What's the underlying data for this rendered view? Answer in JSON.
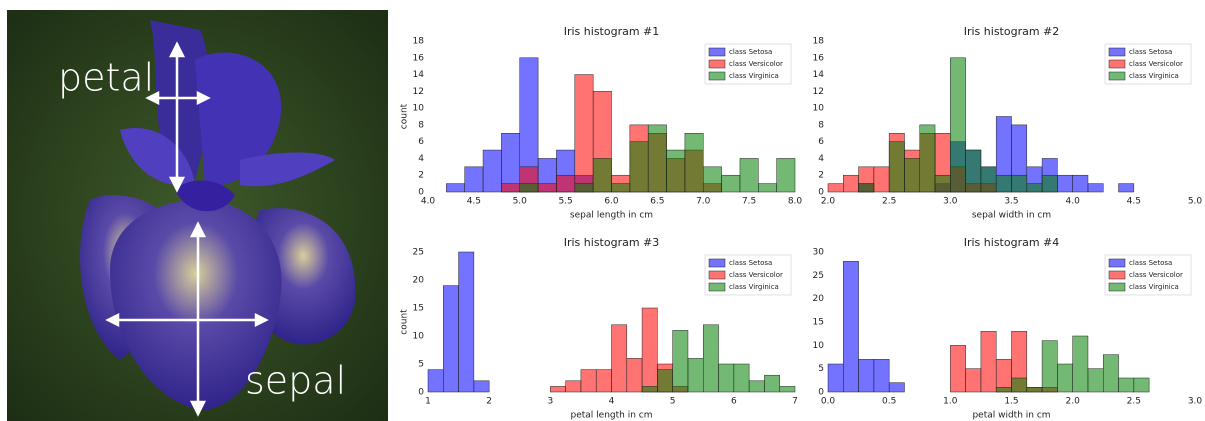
{
  "image": {
    "labels": [
      "petal",
      "sepal"
    ]
  },
  "chart_data": [
    {
      "type": "histogram",
      "title": "Iris histogram #1",
      "x_label": "sepal length in cm",
      "y_label": "count",
      "xlim": [
        4.0,
        8.0
      ],
      "ylim": [
        0,
        18
      ],
      "xticks": [
        {
          "value": 4,
          "label": "4.0"
        },
        4.5,
        {
          "value": 5,
          "label": "5.0"
        },
        5.5,
        {
          "value": 6,
          "label": "6.0"
        },
        6.5,
        {
          "value": 7,
          "label": "7.0"
        },
        7.5,
        {
          "value": 8,
          "label": "8.0"
        }
      ],
      "yticks": [
        0,
        2,
        4,
        6,
        8,
        10,
        12,
        14,
        16,
        18
      ],
      "legend": "upper right",
      "series": [
        {
          "name": "class Setosa",
          "color": "#0000ff",
          "bins": [
            4.0,
            4.2,
            4.4,
            4.6,
            4.8,
            5.0,
            5.2,
            5.4,
            5.6,
            5.8,
            6.0,
            6.2,
            6.4,
            6.6,
            6.8,
            7.0,
            7.2,
            7.4,
            7.6,
            7.8,
            8.0
          ],
          "values": [
            0,
            1,
            3,
            5,
            7,
            16,
            4,
            5,
            2,
            0,
            0,
            0,
            0,
            0,
            0,
            0,
            0,
            0,
            0,
            0
          ]
        },
        {
          "name": "class Versicolor",
          "color": "#ff0000",
          "bins": [
            4.0,
            4.2,
            4.4,
            4.6,
            4.8,
            5.0,
            5.2,
            5.4,
            5.6,
            5.8,
            6.0,
            6.2,
            6.4,
            6.6,
            6.8,
            7.0,
            7.2,
            7.4,
            7.6,
            7.8,
            8.0
          ],
          "values": [
            0,
            0,
            0,
            0,
            1,
            3,
            1,
            2,
            14,
            12,
            2,
            8,
            7,
            4,
            5,
            1,
            0,
            0,
            0,
            0
          ]
        },
        {
          "name": "class Virginica",
          "color": "#008000",
          "bins": [
            4.0,
            4.2,
            4.4,
            4.6,
            4.8,
            5.0,
            5.2,
            5.4,
            5.6,
            5.8,
            6.0,
            6.2,
            6.4,
            6.6,
            6.8,
            7.0,
            7.2,
            7.4,
            7.6,
            7.8,
            8.0
          ],
          "values": [
            0,
            0,
            0,
            0,
            0,
            1,
            0,
            0,
            1,
            4,
            1,
            6,
            8,
            5,
            7,
            3,
            2,
            4,
            1,
            4
          ]
        }
      ]
    },
    {
      "type": "histogram",
      "title": "Iris histogram #2",
      "x_label": "sepal width in cm",
      "xlim": [
        2.0,
        5.0
      ],
      "ylim": [
        0,
        18
      ],
      "xticks": [
        {
          "value": 2,
          "label": "2.0"
        },
        2.5,
        {
          "value": 3,
          "label": "3.0"
        },
        3.5,
        {
          "value": 4,
          "label": "4.0"
        },
        4.5,
        {
          "value": 5,
          "label": "5.0"
        }
      ],
      "yticks": [
        0,
        2,
        4,
        6,
        8,
        10,
        12,
        14,
        16,
        18
      ],
      "legend": "upper right",
      "series": [
        {
          "name": "class Setosa",
          "color": "#0000ff",
          "bins": [
            2.0,
            2.125,
            2.25,
            2.375,
            2.5,
            2.625,
            2.75,
            2.875,
            3.0,
            3.125,
            3.25,
            3.375,
            3.5,
            3.625,
            3.75,
            3.875,
            4.0,
            4.125,
            4.25,
            4.375,
            4.5
          ],
          "values": [
            0,
            0,
            1,
            0,
            0,
            0,
            0,
            1,
            6,
            5,
            3,
            9,
            8,
            3,
            4,
            2,
            2,
            1,
            0,
            1
          ]
        },
        {
          "name": "class Versicolor",
          "color": "#ff0000",
          "bins": [
            2.0,
            2.125,
            2.25,
            2.375,
            2.5,
            2.625,
            2.75,
            2.875,
            3.0,
            3.125,
            3.25,
            3.375,
            3.5,
            3.625,
            3.75,
            3.875,
            4.0,
            4.125,
            4.25,
            4.375,
            4.5
          ],
          "values": [
            1,
            2,
            3,
            3,
            7,
            5,
            7,
            7,
            3,
            1,
            1,
            0,
            0,
            0,
            0,
            0,
            0,
            0,
            0,
            0
          ]
        },
        {
          "name": "class Virginica",
          "color": "#008000",
          "bins": [
            2.0,
            2.125,
            2.25,
            2.375,
            2.5,
            2.625,
            2.75,
            2.875,
            3.0,
            3.125,
            3.25,
            3.375,
            3.5,
            3.625,
            3.75,
            3.875,
            4.0,
            4.125,
            4.25,
            4.375,
            4.5
          ],
          "values": [
            0,
            0,
            1,
            0,
            6,
            4,
            8,
            2,
            16,
            5,
            3,
            2,
            2,
            1,
            2,
            0,
            0,
            0,
            0,
            0
          ]
        }
      ]
    },
    {
      "type": "histogram",
      "title": "Iris histogram #3",
      "x_label": "petal length in cm",
      "y_label": "count",
      "xlim": [
        1,
        7
      ],
      "ylim": [
        0,
        25
      ],
      "xticks": [
        1,
        2,
        3,
        4,
        5,
        6,
        7
      ],
      "yticks": [
        0,
        5,
        10,
        15,
        20,
        25
      ],
      "legend": "upper right",
      "series": [
        {
          "name": "class Setosa",
          "color": "#0000ff",
          "bins": [
            1.0,
            1.25,
            1.5,
            1.75,
            2.0,
            2.25,
            2.5,
            2.75,
            3.0,
            3.25,
            3.5,
            3.75,
            4.0,
            4.25,
            4.5,
            4.75,
            5.0,
            5.25,
            5.5,
            5.75,
            6.0,
            6.25,
            6.5,
            6.75,
            7.0
          ],
          "values": [
            4,
            19,
            25,
            2,
            0,
            0,
            0,
            0,
            0,
            0,
            0,
            0,
            0,
            0,
            0,
            0,
            0,
            0,
            0,
            0,
            0,
            0,
            0,
            0
          ]
        },
        {
          "name": "class Versicolor",
          "color": "#ff0000",
          "bins": [
            1.0,
            1.25,
            1.5,
            1.75,
            2.0,
            2.25,
            2.5,
            2.75,
            3.0,
            3.25,
            3.5,
            3.75,
            4.0,
            4.25,
            4.5,
            4.75,
            5.0,
            5.25,
            5.5,
            5.75,
            6.0,
            6.25,
            6.5,
            6.75,
            7.0
          ],
          "values": [
            0,
            0,
            0,
            0,
            0,
            0,
            0,
            0,
            1,
            2,
            4,
            4,
            12,
            6,
            15,
            5,
            1,
            0,
            0,
            0,
            0,
            0,
            0,
            0
          ]
        },
        {
          "name": "class Virginica",
          "color": "#008000",
          "bins": [
            1.0,
            1.25,
            1.5,
            1.75,
            2.0,
            2.25,
            2.5,
            2.75,
            3.0,
            3.25,
            3.5,
            3.75,
            4.0,
            4.25,
            4.5,
            4.75,
            5.0,
            5.25,
            5.5,
            5.75,
            6.0,
            6.25,
            6.5,
            6.75,
            7.0
          ],
          "values": [
            0,
            0,
            0,
            0,
            0,
            0,
            0,
            0,
            0,
            0,
            0,
            0,
            0,
            0,
            1,
            4,
            11,
            6,
            12,
            5,
            5,
            2,
            3,
            1
          ]
        }
      ]
    },
    {
      "type": "histogram",
      "title": "Iris histogram #4",
      "x_label": "petal width in cm",
      "xlim": [
        0.0,
        3.0
      ],
      "ylim": [
        0,
        30
      ],
      "xticks": [
        {
          "value": 0,
          "label": "0.0"
        },
        0.5,
        {
          "value": 1,
          "label": "1.0"
        },
        1.5,
        {
          "value": 2,
          "label": "2.0"
        },
        2.5,
        {
          "value": 3,
          "label": "3.0"
        }
      ],
      "yticks": [
        0,
        5,
        10,
        15,
        20,
        25,
        30
      ],
      "legend": "upper right",
      "series": [
        {
          "name": "class Setosa",
          "color": "#0000ff",
          "bins": [
            0,
            0.125,
            0.25,
            0.375,
            0.5,
            0.625,
            0.75,
            0.875,
            1.0,
            1.125,
            1.25,
            1.375,
            1.5,
            1.625,
            1.75,
            1.875,
            2.0,
            2.125,
            2.25,
            2.375,
            2.5,
            2.625
          ],
          "values": [
            6,
            28,
            7,
            7,
            2,
            0,
            0,
            0,
            0,
            0,
            0,
            0,
            0,
            0,
            0,
            0,
            0,
            0,
            0,
            0,
            0
          ]
        },
        {
          "name": "class Versicolor",
          "color": "#ff0000",
          "bins": [
            0,
            0.125,
            0.25,
            0.375,
            0.5,
            0.625,
            0.75,
            0.875,
            1.0,
            1.125,
            1.25,
            1.375,
            1.5,
            1.625,
            1.75,
            1.875,
            2.0,
            2.125,
            2.25,
            2.375,
            2.5,
            2.625
          ],
          "values": [
            0,
            0,
            0,
            0,
            0,
            0,
            0,
            0,
            10,
            5,
            13,
            7,
            13,
            1,
            1,
            0,
            0,
            0,
            0,
            0,
            0
          ]
        },
        {
          "name": "class Virginica",
          "color": "#008000",
          "bins": [
            0,
            0.125,
            0.25,
            0.375,
            0.5,
            0.625,
            0.75,
            0.875,
            1.0,
            1.125,
            1.25,
            1.375,
            1.5,
            1.625,
            1.75,
            1.875,
            2.0,
            2.125,
            2.25,
            2.375,
            2.5,
            2.625
          ],
          "values": [
            0,
            0,
            0,
            0,
            0,
            0,
            0,
            0,
            0,
            0,
            0,
            1,
            3,
            1,
            11,
            6,
            12,
            5,
            8,
            3,
            3
          ]
        }
      ]
    }
  ]
}
